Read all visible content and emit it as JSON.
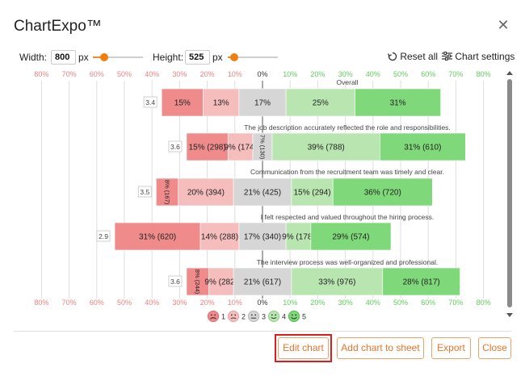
{
  "app": {
    "title": "ChartExpo™"
  },
  "controls": {
    "width_label": "Width:",
    "width_value": "800",
    "width_unit": "px",
    "height_label": "Height:",
    "height_value": "525",
    "height_unit": "px",
    "reset_label": "Reset all",
    "settings_label": "Chart settings"
  },
  "chart_data": {
    "type": "bar",
    "subtype": "diverging-stacked-likert",
    "axis_ticks": [
      "80%",
      "70%",
      "60%",
      "50%",
      "40%",
      "30%",
      "20%",
      "10%",
      "0%",
      "10%",
      "20%",
      "30%",
      "40%",
      "50%",
      "60%",
      "70%",
      "80%"
    ],
    "legend": [
      {
        "label": "1",
        "color": "#ef8b8b"
      },
      {
        "label": "2",
        "color": "#f6bdbd"
      },
      {
        "label": "3",
        "color": "#d6d6d6"
      },
      {
        "label": "4",
        "color": "#b9e6b0"
      },
      {
        "label": "5",
        "color": "#7fd97a"
      }
    ],
    "rows": [
      {
        "title": "Overall",
        "score": "3.4",
        "values": [
          15,
          13,
          17,
          25,
          31
        ],
        "labels": [
          "15%",
          "13%",
          "17%",
          "25%",
          "31%"
        ]
      },
      {
        "title": "The job description accurately reflected the role and responsibilities.",
        "score": "3.6",
        "values": [
          15,
          9,
          7,
          39,
          31
        ],
        "labels": [
          "15% (298)",
          "9% (174)",
          "7% (130)",
          "39% (788)",
          "31% (610)"
        ]
      },
      {
        "title": "Communication from the recruitment team was timely and clear.",
        "score": "3.5",
        "values": [
          8,
          20,
          21,
          15,
          36
        ],
        "labels": [
          "8% (167)",
          "20% (394)",
          "21% (425)",
          "15% (294)",
          "36% (720)"
        ]
      },
      {
        "title": "I felt respected and valued throughout the hiring process.",
        "score": "2.9",
        "values": [
          31,
          14,
          17,
          9,
          29
        ],
        "labels": [
          "31% (620)",
          "14% (288)",
          "17% (340)",
          "9% (178)",
          "29% (574)"
        ]
      },
      {
        "title": "The interview process was well-organized and professional.",
        "score": "3.6",
        "values": [
          8,
          9,
          21,
          33,
          28
        ],
        "labels": [
          "8% (244)",
          "9% (282)",
          "21% (617)",
          "33% (976)",
          "28% (817)"
        ]
      }
    ],
    "colors": {
      "neg_tick": "#f08080",
      "neutral_tick": "#333333",
      "pos_tick": "#5fcf5a"
    }
  },
  "buttons": {
    "edit": "Edit chart",
    "add": "Add chart to sheet",
    "export": "Export",
    "close": "Close"
  }
}
